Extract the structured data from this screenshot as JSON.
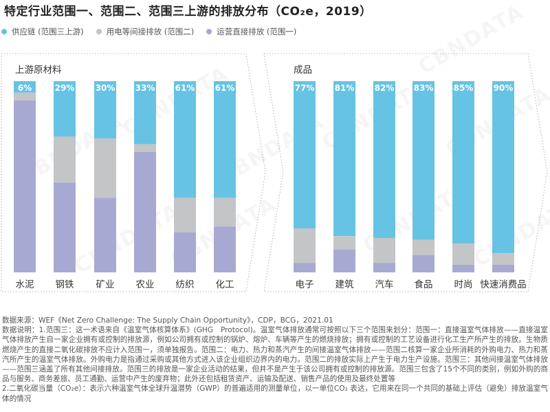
{
  "title": "特定行业范围一、范围二、范围三上游的排放分布（CO₂e，2019）",
  "watermark": "CBNDATA",
  "legend": [
    {
      "label": "供应链 (范围三上游)",
      "color": "#66c3e3"
    },
    {
      "label": "用电等间接排放 (范围二)",
      "color": "#c4c5c7"
    },
    {
      "label": "运营直接排放 (范围一)",
      "color": "#a8a9d2"
    }
  ],
  "chart_data": {
    "type": "bar",
    "stacked": true,
    "title": "特定行业范围一、范围二、范围三上游的排放分布（CO₂e，2019）",
    "xlabel": "",
    "ylabel": "",
    "ylim": [
      0,
      100
    ],
    "unit": "%",
    "legend_position": "top-left",
    "grid": false,
    "panels": [
      {
        "name": "上游原材料",
        "categories": [
          "水泥",
          "钢铁",
          "矿业",
          "农业",
          "纺织",
          "化工"
        ],
        "series": [
          {
            "name": "供应链 (范围三上游)",
            "color": "#66c3e3",
            "values": [
              6,
              29,
              30,
              33,
              61,
              61
            ],
            "labels": [
              "6%",
              "29%",
              "30%",
              "33%",
              "61%",
              "61%"
            ]
          },
          {
            "name": "用电等间接排放 (范围二)",
            "color": "#c4c5c7",
            "values": [
              4,
              24,
              31,
              4,
              18,
              15
            ]
          },
          {
            "name": "运营直接排放 (范围一)",
            "color": "#a8a9d2",
            "values": [
              90,
              47,
              39,
              63,
              21,
              24
            ]
          }
        ]
      },
      {
        "name": "成品",
        "categories": [
          "电子",
          "建筑",
          "汽车",
          "食品",
          "时尚",
          "快速消费品"
        ],
        "series": [
          {
            "name": "供应链 (范围三上游)",
            "color": "#66c3e3",
            "values": [
              77,
              81,
              82,
              83,
              85,
              90
            ],
            "labels": [
              "77%",
              "81%",
              "82%",
              "83%",
              "85%",
              "90%"
            ]
          },
          {
            "name": "用电等间接排放 (范围二)",
            "color": "#c4c5c7",
            "values": [
              18,
              7,
              13,
              8,
              11,
              6
            ]
          },
          {
            "name": "运营直接排放 (范围一)",
            "color": "#a8a9d2",
            "values": [
              5,
              12,
              5,
              9,
              4,
              4
            ]
          }
        ]
      }
    ]
  },
  "notes": {
    "source": "数据来源：WEF《Net Zero Challenge: The Supply Chain Opportunity》，CDP，BCG，2021.01",
    "explanation": "数据说明：1.范围三：这一术语来自《温室气体核算体系》(GHG　Protocol)。温室气体排放通常可按照以下三个范围来划分：范围一：直接温室气体排放——直接温室气体排放产生自一家企业拥有或控制的排放源，例如公司拥有或控制的锅炉、熔炉、车辆等产生的燃烧排放；拥有或控制的工艺设备进行化工生产所产生的排放。生物质燃烧产生的直接二氧化碳排放不应计入范围一，须单独报告。范围二：电力、热力和蒸汽产生的间接温室气体排放——范围二核算一家企业所消耗的外购电力、热力和蒸汽所产生的温室气体排放。外购电力是指通过采购或其他方式进入该企业组织边界内的电力。范围二的排放实际上产生于电力生产设施。范围三：其他间接温室气体排放——范围三涵盖了所有其他间接排放。范围三的排放是一家企业活动的结果，但并不是产生于该公司拥有或控制的排放源。范围三包含了15个不同的类别，例如外购的商品与服务、商务差旅、员工通勤、运营中产生的废弃物；此外还包括租赁资产、运输及配送、销售产品的使用及最终处置等",
    "co2e": "2.二氧化碳当量（CO₂e）：表示六种温室气体全球升温潜势（GWP）的普遍适用的测量单位，以一单位CO₂ 表达，它用来在同一个共同的基础上评估（避免）排放温室气体的情况"
  }
}
